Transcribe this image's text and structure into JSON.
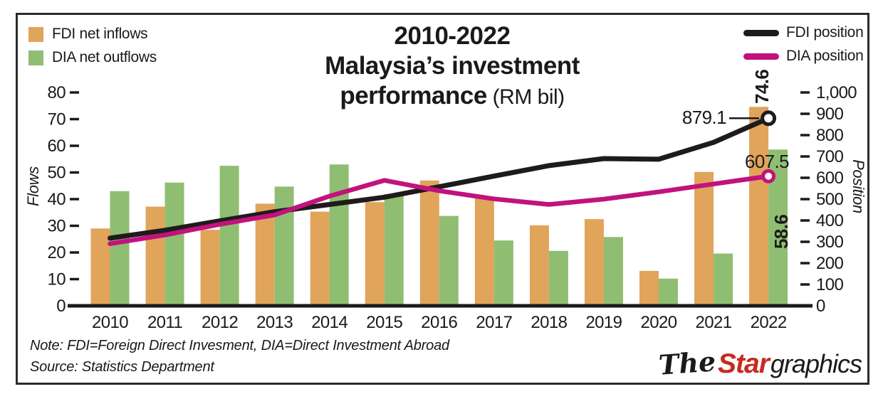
{
  "title": {
    "line1": "2010-2022",
    "line2": "Malaysia’s investment",
    "line3_bold": "performance",
    "line3_suffix": " (RM bil)"
  },
  "legend_bars": {
    "items": [
      {
        "label": "FDI net inflows",
        "color": "#E0A45B"
      },
      {
        "label": "DIA net outflows",
        "color": "#8FBE72"
      }
    ]
  },
  "legend_lines": {
    "items": [
      {
        "label": "FDI position",
        "color": "#1F1B1C"
      },
      {
        "label": "DIA position",
        "color": "#C2127D"
      }
    ]
  },
  "chart_data": {
    "type": "bar",
    "subtype": "combo-bar-line-dual-axis",
    "title": "2010-2022 Malaysia's investment performance (RM bil)",
    "categories": [
      "2010",
      "2011",
      "2012",
      "2013",
      "2014",
      "2015",
      "2016",
      "2017",
      "2018",
      "2019",
      "2020",
      "2021",
      "2022"
    ],
    "series": [
      {
        "name": "FDI net inflows",
        "kind": "bar",
        "axis": "left",
        "color": "#E0A45B",
        "values": [
          29,
          37.2,
          28.5,
          38.3,
          35.3,
          38.9,
          47,
          40.3,
          30.2,
          32.5,
          13.1,
          50.2,
          74.6
        ]
      },
      {
        "name": "DIA net outflows",
        "kind": "bar",
        "axis": "left",
        "color": "#8FBE72",
        "values": [
          43,
          46.2,
          52.5,
          44.7,
          53,
          41.9,
          33.7,
          24.5,
          20.6,
          25.8,
          10.2,
          19.6,
          58.6
        ]
      },
      {
        "name": "FDI position",
        "kind": "line",
        "axis": "right",
        "color": "#1F1B1C",
        "values": [
          317,
          354,
          398,
          441,
          475,
          509,
          558,
          608,
          657,
          690,
          687,
          766,
          879.1
        ]
      },
      {
        "name": "DIA position",
        "kind": "line",
        "axis": "right",
        "color": "#C2127D",
        "values": [
          291,
          332,
          382,
          426,
          514,
          588,
          539,
          501,
          475,
          500,
          534,
          571,
          607.5
        ]
      }
    ],
    "left_axis": {
      "label": "Flows",
      "min": 0,
      "max": 80,
      "step": 10,
      "ticks": [
        "0",
        "10",
        "20",
        "30",
        "40",
        "50",
        "60",
        "70",
        "80"
      ]
    },
    "right_axis": {
      "label": "Position",
      "min": 0,
      "max": 1000,
      "step": 100,
      "ticks": [
        "0",
        "100",
        "200",
        "300",
        "400",
        "500",
        "600",
        "700",
        "800",
        "900",
        "1,000"
      ]
    },
    "annotations": {
      "fdi_position_end": "879.1",
      "dia_position_end": "607.5",
      "fdi_inflow_end": "74.6",
      "dia_outflow_end": "58.6"
    },
    "legend_position": "bars top-left, lines top-right",
    "grid": false
  },
  "note": "Note: FDI=Foreign Direct Invesment, DIA=Direct Investment Abroad",
  "source": "Source: Statistics Department",
  "logo": {
    "the": "The",
    "star": "Star",
    "graphics": "graphics",
    "star_color": "#C62A22"
  }
}
